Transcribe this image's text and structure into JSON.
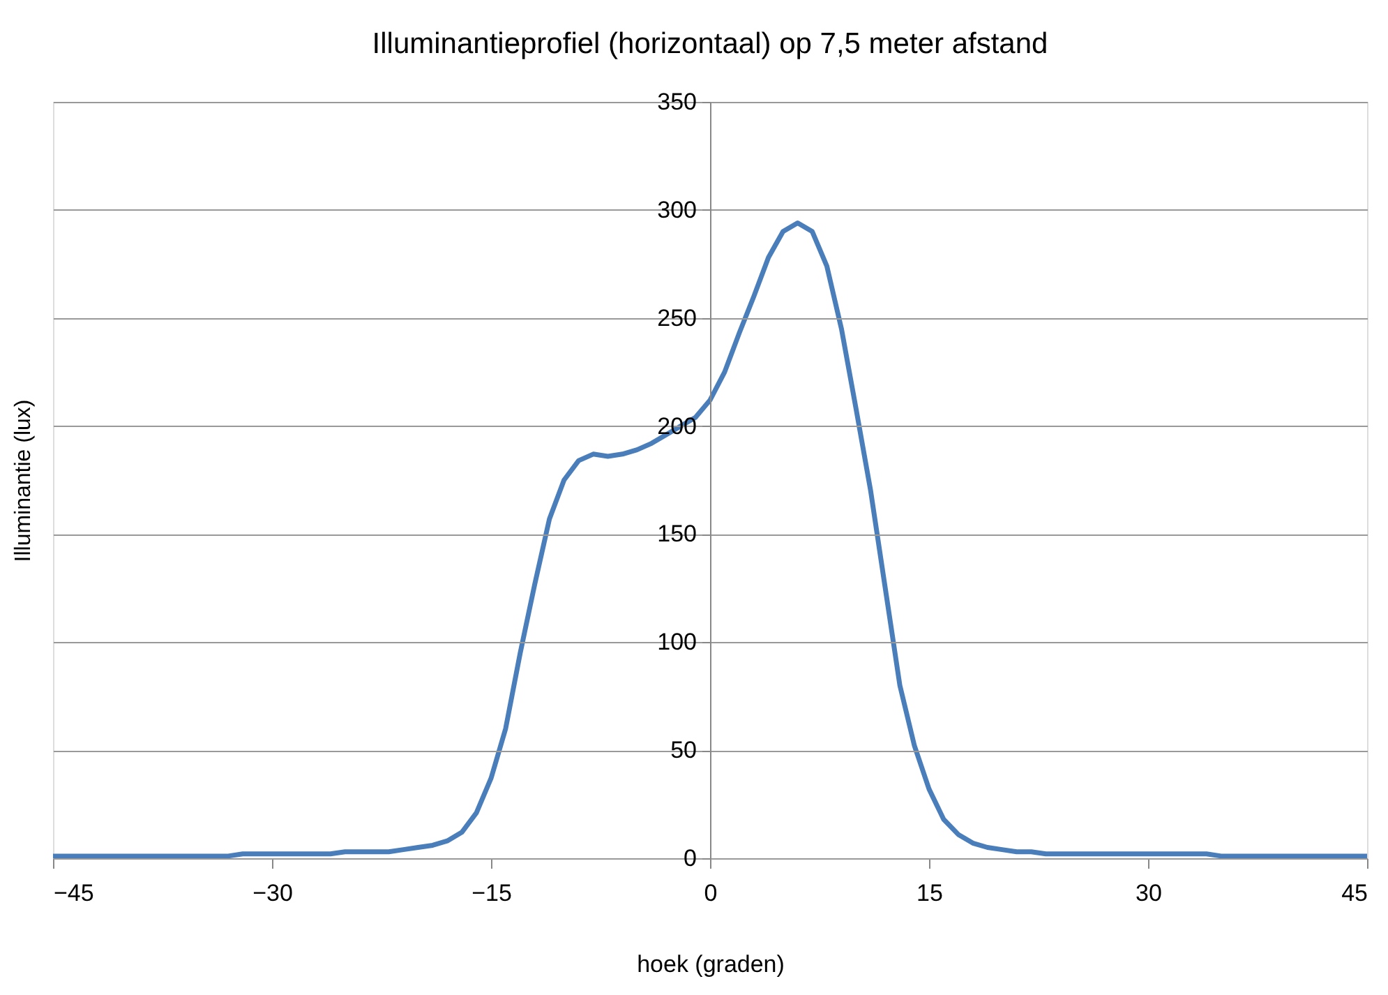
{
  "chart_data": {
    "type": "line",
    "title": "Illuminantieprofiel (horizontaal) op 7,5 meter afstand",
    "xlabel": "hoek (graden)",
    "ylabel": "Illuminantie (lux)",
    "x": [
      -45,
      -44,
      -43,
      -42,
      -41,
      -40,
      -39,
      -38,
      -37,
      -36,
      -35,
      -34,
      -33,
      -32,
      -31,
      -30,
      -29,
      -28,
      -27,
      -26,
      -25,
      -24,
      -23,
      -22,
      -21,
      -20,
      -19,
      -18,
      -17,
      -16,
      -15,
      -14,
      -13,
      -12,
      -11,
      -10,
      -9,
      -8,
      -7,
      -6,
      -5,
      -4,
      -3,
      -2,
      -1,
      0,
      1,
      2,
      3,
      4,
      5,
      6,
      7,
      8,
      9,
      10,
      11,
      12,
      13,
      14,
      15,
      16,
      17,
      18,
      19,
      20,
      21,
      22,
      23,
      24,
      25,
      26,
      27,
      28,
      29,
      30,
      31,
      32,
      33,
      34,
      35,
      36,
      37,
      38,
      39,
      40,
      41,
      42,
      43,
      44,
      45
    ],
    "series": [
      {
        "color": "#4a7ebb",
        "values": [
          1,
          1,
          1,
          1,
          1,
          1,
          1,
          1,
          1,
          1,
          1,
          1,
          1,
          2,
          2,
          2,
          2,
          2,
          2,
          2,
          3,
          3,
          3,
          3,
          4,
          5,
          6,
          8,
          12,
          21,
          37,
          60,
          95,
          127,
          157,
          175,
          184,
          187,
          186,
          187,
          189,
          192,
          196,
          200,
          204,
          212,
          225,
          243,
          260,
          278,
          290,
          294,
          290,
          274,
          245,
          208,
          170,
          125,
          80,
          52,
          32,
          18,
          11,
          7,
          5,
          4,
          3,
          3,
          2,
          2,
          2,
          2,
          2,
          2,
          2,
          2,
          2,
          2,
          2,
          2,
          1,
          1,
          1,
          1,
          1,
          1,
          1,
          1,
          1,
          1,
          1
        ]
      }
    ],
    "xlim": [
      -45,
      45
    ],
    "xticks": [
      -45,
      -30,
      -15,
      0,
      15,
      30,
      45
    ],
    "ylim": [
      0,
      350
    ],
    "yticks": [
      0,
      50,
      100,
      150,
      200,
      250,
      300,
      350
    ],
    "grid": "y",
    "marker": "none",
    "line_style": "solid"
  }
}
